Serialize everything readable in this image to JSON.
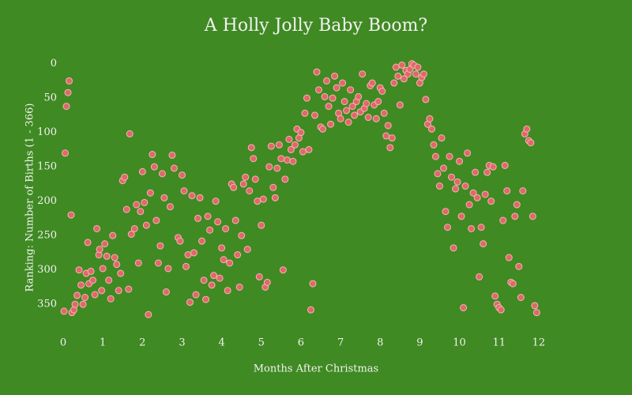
{
  "chart_data": {
    "type": "scatter",
    "title": "A Holly Jolly Baby Boom?",
    "x_label": "Months After Christmas",
    "y_label": "Ranking: Number of Births (1 - 366)",
    "background": "#3f8a22",
    "color": "#e0676b",
    "edge_color": "#f4b6b0",
    "xlim": [
      0,
      12.76
    ],
    "ylim": [
      -18,
      390
    ],
    "y_reversed": true,
    "xticks": [
      0,
      1,
      2,
      3,
      4,
      5,
      6,
      7,
      8,
      9,
      10,
      11,
      12
    ],
    "yticks": [
      0,
      50,
      100,
      150,
      200,
      250,
      300,
      350
    ],
    "x": [
      0.02,
      0.05,
      0.08,
      0.12,
      0.15,
      0.2,
      0.22,
      0.27,
      0.3,
      0.35,
      0.4,
      0.45,
      0.5,
      0.55,
      0.58,
      0.62,
      0.65,
      0.7,
      0.75,
      0.8,
      0.85,
      0.9,
      0.92,
      0.97,
      1.0,
      1.05,
      1.1,
      1.15,
      1.2,
      1.25,
      1.3,
      1.35,
      1.4,
      1.45,
      1.5,
      1.55,
      1.6,
      1.65,
      1.68,
      1.72,
      1.8,
      1.85,
      1.9,
      1.95,
      2.0,
      2.05,
      2.1,
      2.15,
      2.2,
      2.25,
      2.3,
      2.35,
      2.4,
      2.45,
      2.5,
      2.55,
      2.6,
      2.65,
      2.7,
      2.75,
      2.8,
      2.9,
      2.95,
      3.0,
      3.05,
      3.1,
      3.15,
      3.2,
      3.25,
      3.3,
      3.35,
      3.4,
      3.45,
      3.5,
      3.55,
      3.6,
      3.65,
      3.7,
      3.75,
      3.8,
      3.85,
      3.9,
      3.95,
      4.0,
      4.05,
      4.1,
      4.15,
      4.2,
      4.25,
      4.3,
      4.35,
      4.4,
      4.45,
      4.5,
      4.55,
      4.6,
      4.65,
      4.7,
      4.75,
      4.8,
      4.85,
      4.9,
      4.95,
      5.0,
      5.05,
      5.1,
      5.15,
      5.2,
      5.25,
      5.3,
      5.35,
      5.4,
      5.45,
      5.5,
      5.55,
      5.6,
      5.65,
      5.7,
      5.75,
      5.8,
      5.85,
      5.9,
      5.95,
      6.0,
      6.05,
      6.1,
      6.15,
      6.2,
      6.25,
      6.3,
      6.35,
      6.4,
      6.45,
      6.5,
      6.55,
      6.6,
      6.65,
      6.7,
      6.75,
      6.8,
      6.85,
      6.9,
      6.95,
      7.0,
      7.05,
      7.1,
      7.15,
      7.2,
      7.25,
      7.3,
      7.35,
      7.4,
      7.45,
      7.5,
      7.55,
      7.6,
      7.65,
      7.7,
      7.75,
      7.8,
      7.85,
      7.9,
      7.95,
      8.0,
      8.05,
      8.1,
      8.15,
      8.2,
      8.25,
      8.3,
      8.35,
      8.4,
      8.45,
      8.5,
      8.55,
      8.6,
      8.65,
      8.7,
      8.75,
      8.8,
      8.85,
      8.9,
      8.95,
      9.0,
      9.05,
      9.1,
      9.15,
      9.2,
      9.25,
      9.3,
      9.35,
      9.4,
      9.45,
      9.5,
      9.55,
      9.6,
      9.65,
      9.7,
      9.75,
      9.8,
      9.85,
      9.9,
      9.95,
      10.0,
      10.05,
      10.1,
      10.15,
      10.2,
      10.25,
      10.3,
      10.35,
      10.4,
      10.45,
      10.5,
      10.55,
      10.6,
      10.65,
      10.7,
      10.75,
      10.8,
      10.85,
      10.9,
      10.95,
      11.0,
      11.05,
      11.1,
      11.15,
      11.2,
      11.25,
      11.3,
      11.35,
      11.4,
      11.45,
      11.5,
      11.55,
      11.6,
      11.65,
      11.7,
      11.75,
      11.8,
      11.85,
      11.9,
      11.95
    ],
    "y": [
      360,
      130,
      62,
      42,
      25,
      220,
      362,
      358,
      350,
      337,
      300,
      322,
      350,
      340,
      305,
      260,
      320,
      302,
      315,
      336,
      240,
      278,
      270,
      330,
      298,
      262,
      280,
      315,
      342,
      250,
      282,
      292,
      330,
      305,
      170,
      165,
      212,
      328,
      102,
      248,
      240,
      205,
      290,
      215,
      157,
      202,
      235,
      365,
      188,
      132,
      150,
      228,
      290,
      265,
      160,
      195,
      332,
      298,
      208,
      133,
      152,
      253,
      258,
      162,
      185,
      295,
      278,
      347,
      192,
      275,
      336,
      225,
      195,
      258,
      315,
      343,
      222,
      242,
      322,
      308,
      200,
      230,
      312,
      268,
      285,
      240,
      330,
      290,
      175,
      180,
      228,
      278,
      325,
      250,
      175,
      165,
      270,
      185,
      122,
      138,
      168,
      200,
      310,
      235,
      197,
      325,
      318,
      150,
      120,
      180,
      195,
      152,
      118,
      138,
      300,
      168,
      140,
      110,
      125,
      142,
      118,
      95,
      108,
      100,
      128,
      72,
      50,
      125,
      358,
      320,
      75,
      12,
      38,
      92,
      95,
      48,
      25,
      62,
      88,
      50,
      18,
      35,
      72,
      80,
      28,
      55,
      68,
      85,
      38,
      62,
      75,
      55,
      48,
      70,
      15,
      65,
      58,
      78,
      32,
      28,
      60,
      80,
      55,
      35,
      40,
      72,
      105,
      90,
      122,
      108,
      28,
      5,
      18,
      60,
      2,
      22,
      10,
      15,
      8,
      0,
      2,
      15,
      5,
      28,
      20,
      15,
      52,
      88,
      80,
      95,
      118,
      135,
      160,
      178,
      108,
      152,
      215,
      238,
      135,
      165,
      268,
      182,
      172,
      142,
      222,
      355,
      178,
      130,
      205,
      240,
      188,
      158,
      195,
      310,
      238,
      262,
      190,
      158,
      148,
      200,
      150,
      338,
      350,
      355,
      358,
      228,
      148,
      185,
      282,
      318,
      320,
      222,
      205,
      295,
      340,
      185,
      102,
      95,
      112,
      115,
      222,
      352,
      362
    ]
  }
}
